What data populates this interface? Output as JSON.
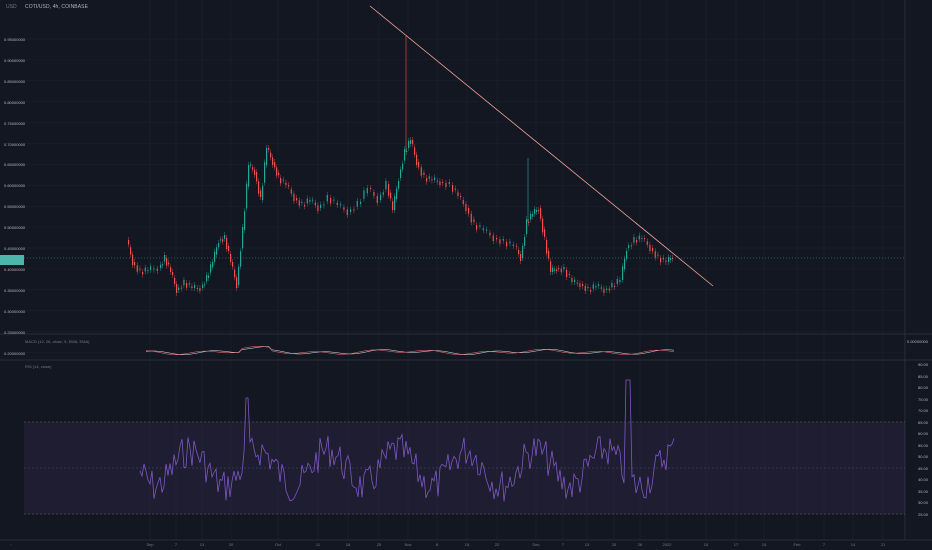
{
  "header": {
    "corner_label": "USD",
    "symbol_line": "COTI/USD, 4h, COINBASE"
  },
  "price_axis": {
    "labels": [
      "0.95000000",
      "0.90000000",
      "0.85000000",
      "0.80000000",
      "0.75000000",
      "0.70000000",
      "0.65000000",
      "0.60000000",
      "0.55000000",
      "0.50000000",
      "0.45000000",
      "0.40000000",
      "0.35000000",
      "0.30000000",
      "0.25000000",
      "0.20000000"
    ]
  },
  "macd_panel": {
    "title": "MACD (12, 26, close, 9, EMA, EMA)",
    "axis_label": "0.00000000"
  },
  "rsi_panel": {
    "title": "RSI (14, close)",
    "axis_labels": [
      "90.00",
      "85.00",
      "80.00",
      "75.00",
      "70.00",
      "65.00",
      "60.00",
      "55.00",
      "50.00",
      "45.00",
      "40.00",
      "35.00",
      "30.00",
      "25.00"
    ]
  },
  "time_axis": {
    "labels": [
      "Sep",
      "7",
      "13",
      "20",
      "Oct",
      "11",
      "18",
      "25",
      "Nov",
      "8",
      "15",
      "22",
      "Dec",
      "7",
      "13",
      "20",
      "26",
      "2022",
      "10",
      "17",
      "24",
      "Feb",
      "7",
      "14",
      "21"
    ]
  },
  "colors": {
    "background": "#131722",
    "up_candle": "#26a69a",
    "down_candle": "#ef5350",
    "trendline": "#f7a49b",
    "rsi_line": "#7e57c2",
    "rsi_band": "#7e57c2",
    "macd_line": "#e0e3eb",
    "signal_line": "#ff6d6d",
    "price_tag": "#4db6ac"
  }
}
